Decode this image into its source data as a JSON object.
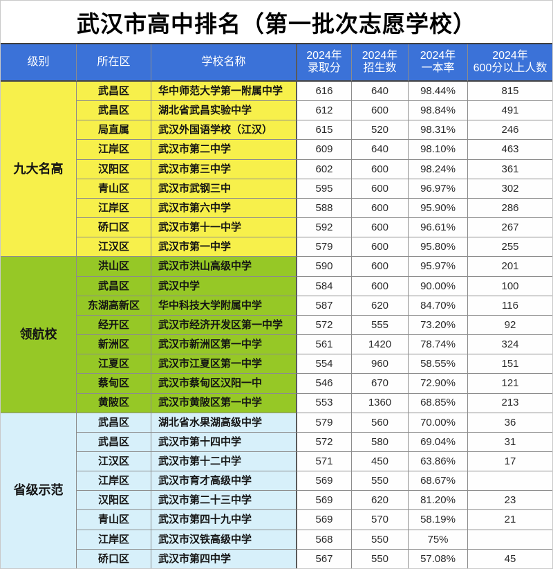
{
  "title": "武汉市高中排名（第一批次志愿学校）",
  "colors": {
    "header_bg": "#3b72d8",
    "header_text": "#ffffff",
    "group_nine_famous_bg": "#f7f04b",
    "group_pilot_bg": "#96c826",
    "group_provincial_bg": "#d7f0fa",
    "numeric_cell_bg": "#fefefe",
    "grid_line": "#8c8c8c",
    "dark_separator": "#3f3f3f",
    "title_text": "#000000"
  },
  "chart_data": {
    "type": "table",
    "title": "武汉市高中排名（第一批次志愿学校）",
    "columns": [
      "级别",
      "所在区",
      "学校名称",
      "2024年\n录取分",
      "2024年\n招生数",
      "2024年\n一本率",
      "2024年\n600分以上人数"
    ],
    "groups": [
      {
        "level": "九大名高",
        "color": "#f7f04b",
        "rows": [
          [
            "武昌区",
            "华中师范大学第一附属中学",
            "616",
            "640",
            "98.44%",
            "815"
          ],
          [
            "武昌区",
            "湖北省武昌实验中学",
            "612",
            "600",
            "98.84%",
            "491"
          ],
          [
            "局直属",
            "武汉外国语学校（江汉）",
            "615",
            "520",
            "98.31%",
            "246"
          ],
          [
            "江岸区",
            "武汉市第二中学",
            "609",
            "640",
            "98.10%",
            "463"
          ],
          [
            "汉阳区",
            "武汉市第三中学",
            "602",
            "600",
            "98.24%",
            "361"
          ],
          [
            "青山区",
            "武汉市武钢三中",
            "595",
            "600",
            "96.97%",
            "302"
          ],
          [
            "江岸区",
            "武汉市第六中学",
            "588",
            "600",
            "95.90%",
            "286"
          ],
          [
            "硚口区",
            "武汉市第十一中学",
            "592",
            "600",
            "96.61%",
            "267"
          ],
          [
            "江汉区",
            "武汉市第一中学",
            "579",
            "600",
            "95.80%",
            "255"
          ]
        ]
      },
      {
        "level": "领航校",
        "color": "#96c826",
        "rows": [
          [
            "洪山区",
            "武汉市洪山高级中学",
            "590",
            "600",
            "95.97%",
            "201"
          ],
          [
            "武昌区",
            "武汉中学",
            "584",
            "600",
            "90.00%",
            "100"
          ],
          [
            "东湖高新区",
            "华中科技大学附属中学",
            "587",
            "620",
            "84.70%",
            "116"
          ],
          [
            "经开区",
            "武汉市经济开发区第一中学",
            "572",
            "555",
            "73.20%",
            "92"
          ],
          [
            "新洲区",
            "武汉市新洲区第一中学",
            "561",
            "1420",
            "78.74%",
            "324"
          ],
          [
            "江夏区",
            "武汉市江夏区第一中学",
            "554",
            "960",
            "58.55%",
            "151"
          ],
          [
            "蔡甸区",
            "武汉市蔡甸区汉阳一中",
            "546",
            "670",
            "72.90%",
            "121"
          ],
          [
            "黄陂区",
            "武汉市黄陂区第一中学",
            "553",
            "1360",
            "68.85%",
            "213"
          ]
        ]
      },
      {
        "level": "省级示范",
        "color": "#d7f0fa",
        "rows": [
          [
            "武昌区",
            "湖北省水果湖高级中学",
            "579",
            "560",
            "70.00%",
            "36"
          ],
          [
            "武昌区",
            "武汉市第十四中学",
            "572",
            "580",
            "69.04%",
            "31"
          ],
          [
            "江汉区",
            "武汉市第十二中学",
            "571",
            "450",
            "63.86%",
            "17"
          ],
          [
            "江岸区",
            "武汉市育才高级中学",
            "569",
            "550",
            "68.67%",
            ""
          ],
          [
            "汉阳区",
            "武汉市第二十三中学",
            "569",
            "620",
            "81.20%",
            "23"
          ],
          [
            "青山区",
            "武汉市第四十九中学",
            "569",
            "570",
            "58.19%",
            "21"
          ],
          [
            "江岸区",
            "武汉市汉铁高级中学",
            "568",
            "550",
            "75%",
            ""
          ],
          [
            "硚口区",
            "武汉市第四中学",
            "567",
            "550",
            "57.08%",
            "45"
          ]
        ]
      }
    ]
  }
}
